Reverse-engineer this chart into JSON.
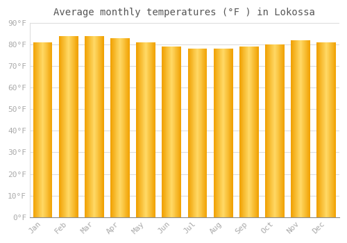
{
  "title": "Average monthly temperatures (°F ) in Lokossa",
  "months": [
    "Jan",
    "Feb",
    "Mar",
    "Apr",
    "May",
    "Jun",
    "Jul",
    "Aug",
    "Sep",
    "Oct",
    "Nov",
    "Dec"
  ],
  "values": [
    81,
    84,
    84,
    83,
    81,
    79,
    78,
    78,
    79,
    80,
    82,
    81
  ],
  "ylim": [
    0,
    90
  ],
  "yticks": [
    0,
    10,
    20,
    30,
    40,
    50,
    60,
    70,
    80,
    90
  ],
  "ytick_labels": [
    "0°F",
    "10°F",
    "20°F",
    "30°F",
    "40°F",
    "50°F",
    "60°F",
    "70°F",
    "80°F",
    "90°F"
  ],
  "bar_color_center": "#FFD966",
  "bar_color_edge": "#F0A000",
  "background_color": "#FFFFFF",
  "grid_color": "#DDDDDD",
  "title_fontsize": 10,
  "tick_fontsize": 8,
  "font_color": "#AAAAAA"
}
